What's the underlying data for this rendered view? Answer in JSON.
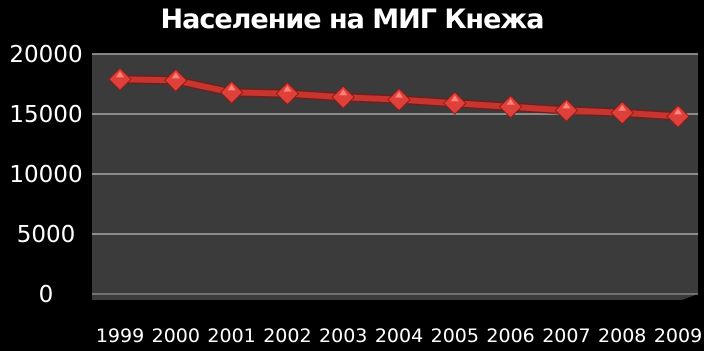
{
  "chart_data": {
    "type": "line",
    "title": "Население на МИГ Кнежа",
    "xlabel": "",
    "ylabel": "",
    "categories": [
      "1999",
      "2000",
      "2001",
      "2002",
      "2003",
      "2004",
      "2005",
      "2006",
      "2007",
      "2008",
      "2009"
    ],
    "series": [
      {
        "values": [
          17900,
          17800,
          16800,
          16700,
          16400,
          16200,
          15900,
          15600,
          15300,
          15100,
          14800
        ]
      }
    ],
    "ylim": [
      0,
      20000
    ],
    "yticks": [
      "0",
      "5000",
      "10000",
      "15000",
      "20000"
    ],
    "grid": true,
    "legend": "none",
    "colors": {
      "background": "#000000",
      "plot_area": "#3b3b3b",
      "gridline": "#a8a8a8",
      "line": "#c8342e",
      "marker": "#e0403a",
      "marker_highlight": "#ff8c85",
      "text": "#ffffff"
    }
  }
}
